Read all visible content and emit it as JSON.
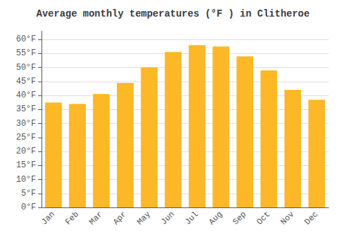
{
  "chart_data": {
    "type": "bar",
    "title": "Average monthly temperatures (°F ) in Clitheroe",
    "categories": [
      "Jan",
      "Feb",
      "Mar",
      "Apr",
      "May",
      "Jun",
      "Jul",
      "Aug",
      "Sep",
      "Oct",
      "Nov",
      "Dec"
    ],
    "values": [
      37.5,
      37.0,
      40.5,
      44.5,
      50.0,
      55.5,
      58.0,
      57.5,
      54.0,
      49.0,
      42.0,
      38.5
    ],
    "color": "#FDB827",
    "ylim": [
      0,
      63
    ],
    "yticks": [
      {
        "value": 0,
        "label": "0°F"
      },
      {
        "value": 5,
        "label": "5°F"
      },
      {
        "value": 10,
        "label": "10°F"
      },
      {
        "value": 15,
        "label": "15°F"
      },
      {
        "value": 20,
        "label": "20°F"
      },
      {
        "value": 25,
        "label": "25°F"
      },
      {
        "value": 30,
        "label": "30°F"
      },
      {
        "value": 35,
        "label": "35°F"
      },
      {
        "value": 40,
        "label": "40°F"
      },
      {
        "value": 45,
        "label": "45°F"
      },
      {
        "value": 50,
        "label": "50°F"
      },
      {
        "value": 55,
        "label": "55°F"
      },
      {
        "value": 60,
        "label": "60°F"
      }
    ],
    "grid": true
  }
}
